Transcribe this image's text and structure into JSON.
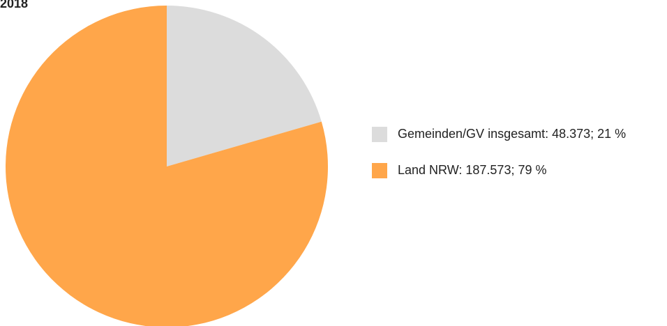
{
  "chart_data": {
    "type": "pie",
    "title": "2018",
    "categories": [
      "Gemeinden/GV insgesamt: 48.373; 21 %",
      "Land NRW: 187.573; 79 %"
    ],
    "values": [
      48373,
      187573
    ],
    "colors": [
      "#dcdcdc",
      "#ffa64a"
    ]
  }
}
